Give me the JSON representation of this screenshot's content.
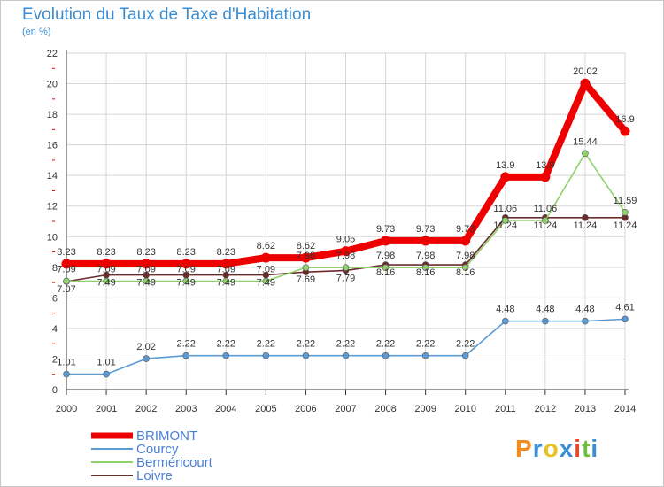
{
  "title": "Evolution du Taux de Taxe d'Habitation",
  "subtitle": "(en %)",
  "logo_text": "Proxiti",
  "logo_colors": [
    "#f08c1e",
    "#3a8ed3",
    "#e8c21e",
    "#3a8ed3",
    "#e34a2a",
    "#6cbf3c",
    "#3a8ed3"
  ],
  "chart_data": {
    "type": "line",
    "x": [
      "2000",
      "2001",
      "2002",
      "2003",
      "2004",
      "2005",
      "2006",
      "2007",
      "2008",
      "2009",
      "2010",
      "2011",
      "2012",
      "2013",
      "2014"
    ],
    "ylim": [
      0,
      22
    ],
    "yticks": [
      "0",
      "2",
      "4",
      "6",
      "8",
      "10",
      "12",
      "14",
      "16",
      "18",
      "20",
      "22"
    ],
    "grid": true,
    "legend_position": "bottom-left",
    "series": [
      {
        "name": "BRIMONT",
        "color": "#ee0000",
        "values": [
          8.23,
          8.23,
          8.23,
          8.23,
          8.23,
          8.62,
          8.62,
          9.05,
          9.73,
          9.73,
          9.73,
          13.9,
          13.9,
          20.02,
          16.9
        ],
        "labels": [
          "8.23",
          "8.23",
          "8.23",
          "8.23",
          "8.23",
          "8.62",
          "8.62",
          "9.05",
          "9.73",
          "9.73",
          "9.73",
          "13.9",
          "13.9",
          "20.02",
          "16.9"
        ]
      },
      {
        "name": "Courcy",
        "color": "#5b9bd5",
        "values": [
          1.01,
          1.01,
          2.02,
          2.22,
          2.22,
          2.22,
          2.22,
          2.22,
          2.22,
          2.22,
          2.22,
          4.48,
          4.48,
          4.48,
          4.61
        ],
        "labels": [
          "1.01",
          "1.01",
          "2.02",
          "2.22",
          "2.22",
          "2.22",
          "2.22",
          "2.22",
          "2.22",
          "2.22",
          "2.22",
          "4.48",
          "4.48",
          "4.48",
          "4.61"
        ]
      },
      {
        "name": "Berméricourt",
        "color": "#8fd16a",
        "values": [
          7.09,
          7.09,
          7.09,
          7.09,
          7.09,
          7.09,
          7.98,
          7.98,
          7.98,
          7.98,
          7.98,
          11.06,
          11.06,
          15.44,
          11.59
        ],
        "labels": [
          "7.09",
          "7.09",
          "7.09",
          "7.09",
          "7.09",
          "7.09",
          "7.98",
          "7.98",
          "7.98",
          "7.98",
          "7.98",
          "11.06",
          "11.06",
          "15.44",
          "11.59"
        ]
      },
      {
        "name": "Loivre",
        "color": "#6b2b2b",
        "values": [
          7.07,
          7.49,
          7.49,
          7.49,
          7.49,
          7.49,
          7.69,
          7.79,
          8.16,
          8.16,
          8.16,
          11.24,
          11.24,
          11.24,
          11.24
        ],
        "labels": [
          "7.07",
          "7.49",
          "7.49",
          "7.49",
          "7.49",
          "7.49",
          "7.69",
          "7.79",
          "8.16",
          "8.16",
          "8.16",
          "11.24",
          "11.24",
          "11.24",
          "11.24"
        ]
      }
    ]
  }
}
